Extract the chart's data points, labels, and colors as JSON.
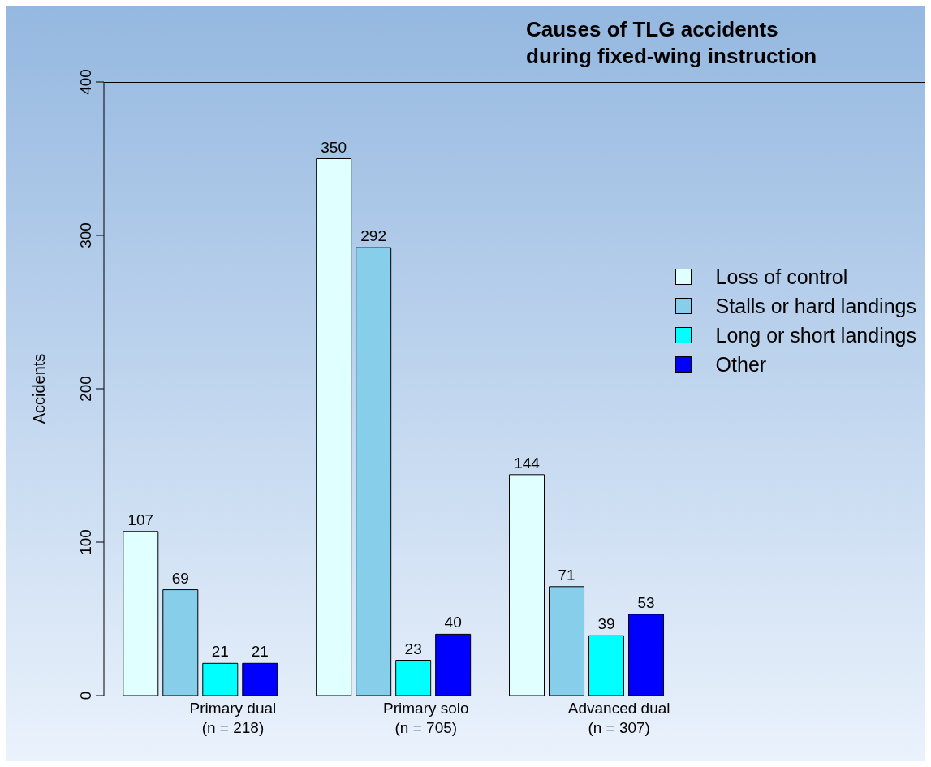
{
  "chart_data": {
    "type": "bar",
    "title": "Causes of TLG accidents\nduring fixed-wing instruction",
    "ylabel": "Accidents",
    "categories": [
      "Primary dual\n(n = 218)",
      "Primary solo\n(n = 705)",
      "Advanced dual\n(n = 307)"
    ],
    "series": [
      {
        "name": "Loss of control",
        "color": "#e0ffff",
        "values": [
          107,
          350,
          144
        ]
      },
      {
        "name": "Stalls or hard landings",
        "color": "#87ceeb",
        "values": [
          69,
          292,
          71
        ]
      },
      {
        "name": "Long or short landings",
        "color": "#00ffff",
        "values": [
          21,
          23,
          39
        ]
      },
      {
        "name": "Other",
        "color": "#0000ff",
        "values": [
          21,
          40,
          53
        ]
      }
    ],
    "ylim": [
      0,
      400
    ],
    "yticks": [
      0,
      100,
      200,
      300,
      400
    ],
    "data_labels": true,
    "grid": false,
    "legend": "right"
  }
}
